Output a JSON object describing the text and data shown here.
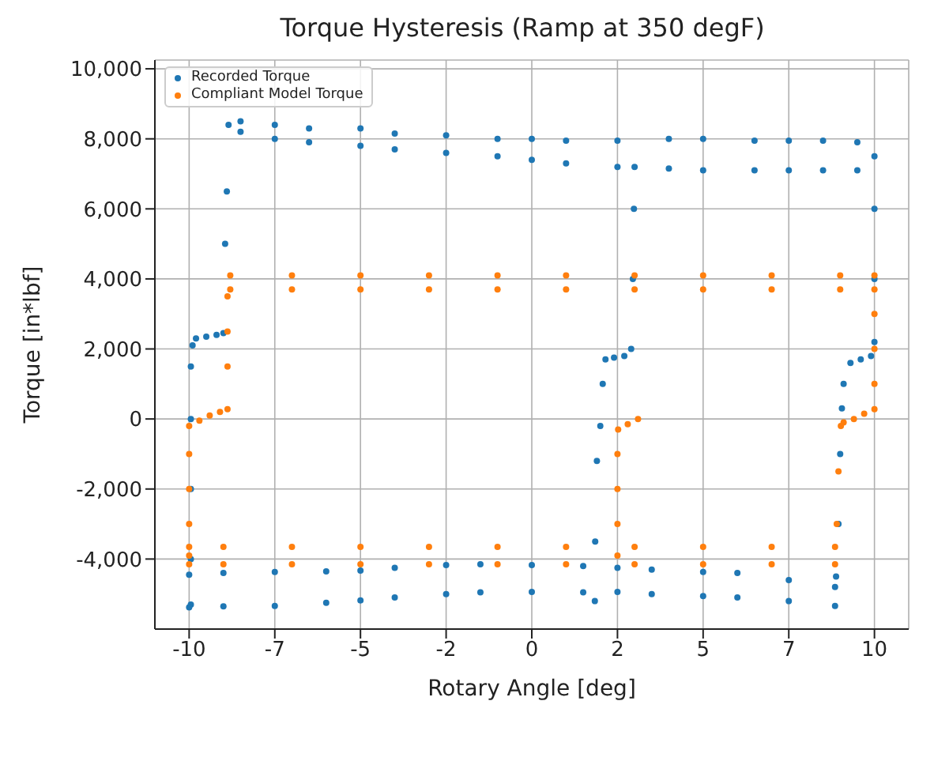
{
  "chart_data": {
    "type": "scatter",
    "title": "Torque Hysteresis (Ramp at 350 degF)",
    "xlabel": "Rotary Angle [deg]",
    "ylabel": "Torque [in*lbf]",
    "xlim": [
      -11,
      11
    ],
    "xticks": [
      -10,
      {
        "value": -7.5,
        "label": "-7"
      },
      -5,
      {
        "value": -2.5,
        "label": "-2"
      },
      0,
      {
        "value": 2.5,
        "label": "2"
      },
      5,
      {
        "value": 7.5,
        "label": "7"
      },
      10
    ],
    "ylim": [
      -6000,
      10250
    ],
    "yticks": [
      {
        "value": -4000,
        "label": "-4,000"
      },
      {
        "value": -2000,
        "label": "-2,000"
      },
      0,
      {
        "value": 2000,
        "label": "2,000"
      },
      {
        "value": 4000,
        "label": "4,000"
      },
      {
        "value": 6000,
        "label": "6,000"
      },
      {
        "value": 8000,
        "label": "8,000"
      },
      {
        "value": 10000,
        "label": "10,000"
      }
    ],
    "grid": true,
    "legend": "top left",
    "marker": "circle",
    "series": [
      {
        "name": "Recorded Torque",
        "color": "#1f77b4",
        "x": [
          -9.95,
          -9.95,
          -9.95,
          -9.95,
          -9.95,
          -9.9,
          -9.8,
          -9.5,
          -9.2,
          -9.0,
          -8.95,
          -8.9,
          -8.85,
          -8.5,
          -8.5,
          -7.5,
          -7.5,
          -6.5,
          -6.5,
          -5,
          -5,
          -4,
          -4,
          -2.5,
          -2.5,
          -1,
          -1,
          0,
          0,
          1,
          1,
          2.5,
          2.5,
          4,
          4,
          5,
          5,
          6.5,
          6.5,
          7.5,
          7.5,
          8.5,
          8.5,
          9.5,
          9.5,
          10,
          10,
          10,
          10,
          9.9,
          9.6,
          9.3,
          9.1,
          9.05,
          9.0,
          8.95,
          8.88,
          8.85,
          8.85,
          7.5,
          7.5,
          6,
          6,
          5,
          5,
          3.5,
          3.5,
          2.5,
          2.5,
          1.5,
          1.5,
          0,
          0,
          -1.5,
          -1.5,
          -2.5,
          -2.5,
          -4,
          -4,
          -5,
          -5,
          -6,
          -6,
          -7.5,
          -7.5,
          -9,
          -9,
          -10,
          -10,
          1.84,
          1.85,
          1.9,
          2.0,
          2.07,
          2.15,
          2.4,
          2.7,
          2.9,
          2.95,
          2.98,
          3.0
        ],
        "values": [
          -5300,
          -4000,
          -2000,
          0,
          1500,
          2100,
          2300,
          2350,
          2400,
          2450,
          5000,
          6500,
          8400,
          8500,
          8200,
          8400,
          8000,
          8300,
          7900,
          8300,
          7800,
          8150,
          7700,
          8100,
          7600,
          8000,
          7500,
          8000,
          7400,
          7950,
          7300,
          7950,
          7200,
          8000,
          7150,
          8000,
          7100,
          7950,
          7100,
          7950,
          7100,
          7950,
          7100,
          7900,
          7100,
          7500,
          6000,
          4000,
          2200,
          1800,
          1700,
          1600,
          1000,
          300,
          -1000,
          -3000,
          -4500,
          -4800,
          -5340,
          -4600,
          -5200,
          -4400,
          -5100,
          -4370,
          -5060,
          -4300,
          -5000,
          -4250,
          -4940,
          -4200,
          -4950,
          -4170,
          -4940,
          -4150,
          -4950,
          -4170,
          -5000,
          -4250,
          -5100,
          -4330,
          -5180,
          -4350,
          -5250,
          -4370,
          -5340,
          -4400,
          -5350,
          -4450,
          -5380,
          -5200,
          -3500,
          -1200,
          -200,
          1000,
          1700,
          1750,
          1800,
          2000,
          4000,
          6000,
          7200
        ]
      },
      {
        "name": "Compliant Model Torque",
        "color": "#ff7f0e",
        "x": [
          -10,
          -10,
          -10,
          -10,
          -10,
          -9.7,
          -9.4,
          -9.1,
          -8.88,
          -8.88,
          -8.88,
          -8.88,
          -8.8,
          -8.8,
          -7,
          -7,
          -5,
          -5,
          -3,
          -3,
          -1,
          -1,
          1,
          1,
          3,
          3,
          5,
          5,
          7,
          7,
          9,
          9,
          10,
          10,
          10,
          10,
          10,
          10,
          9.7,
          9.4,
          9.1,
          9.02,
          8.95,
          8.9,
          8.85,
          8.85,
          7,
          7,
          5,
          5,
          3,
          3,
          1,
          1,
          -1,
          -1,
          -3,
          -3,
          -5,
          -5,
          -7,
          -7,
          -9,
          -9,
          -10,
          -10,
          2.5,
          2.5,
          2.5,
          2.5,
          2.52,
          2.8,
          3.1
        ],
        "values": [
          -3900,
          -3000,
          -2000,
          -1000,
          -200,
          -50,
          100,
          200,
          280,
          1500,
          2500,
          3500,
          4100,
          3700,
          4100,
          3700,
          4100,
          3700,
          4100,
          3700,
          4100,
          3700,
          4100,
          3700,
          4100,
          3700,
          4100,
          3700,
          4100,
          3700,
          4100,
          3700,
          4100,
          3700,
          3000,
          2000,
          1000,
          280,
          150,
          0,
          -100,
          -200,
          -1500,
          -3000,
          -3650,
          -4150,
          -3650,
          -4150,
          -3650,
          -4150,
          -3650,
          -4150,
          -3650,
          -4150,
          -3650,
          -4150,
          -3650,
          -4150,
          -3650,
          -4150,
          -3650,
          -4150,
          -3650,
          -4150,
          -3650,
          -4150,
          -3900,
          -3000,
          -2000,
          -1000,
          -300,
          -150,
          0
        ]
      }
    ]
  }
}
